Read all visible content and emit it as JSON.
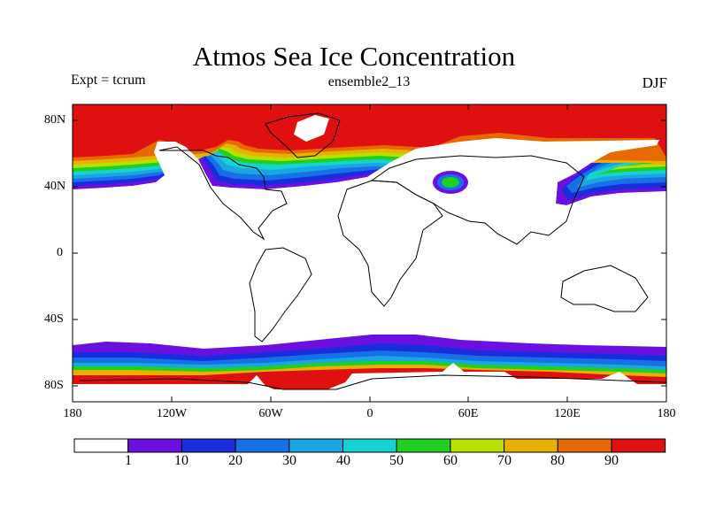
{
  "header": {
    "title": "Atmos Sea Ice Concentration",
    "experiment": "Expt = tcrum",
    "subtitle": "ensemble2_13",
    "season": "DJF"
  },
  "axes": {
    "lat_labels": [
      "80N",
      "40N",
      "0",
      "40S",
      "80S"
    ],
    "lon_labels": [
      "180",
      "120W",
      "60W",
      "0",
      "60E",
      "120E",
      "180"
    ]
  },
  "colorbar": {
    "labels": [
      "1",
      "10",
      "20",
      "30",
      "40",
      "50",
      "60",
      "70",
      "80",
      "90"
    ],
    "colors": [
      "#ffffff",
      "#6a10e0",
      "#1a2ddc",
      "#1670e6",
      "#1aa6e0",
      "#16d2d2",
      "#20d020",
      "#b8e000",
      "#e8b000",
      "#e66a00",
      "#e01010"
    ]
  }
}
